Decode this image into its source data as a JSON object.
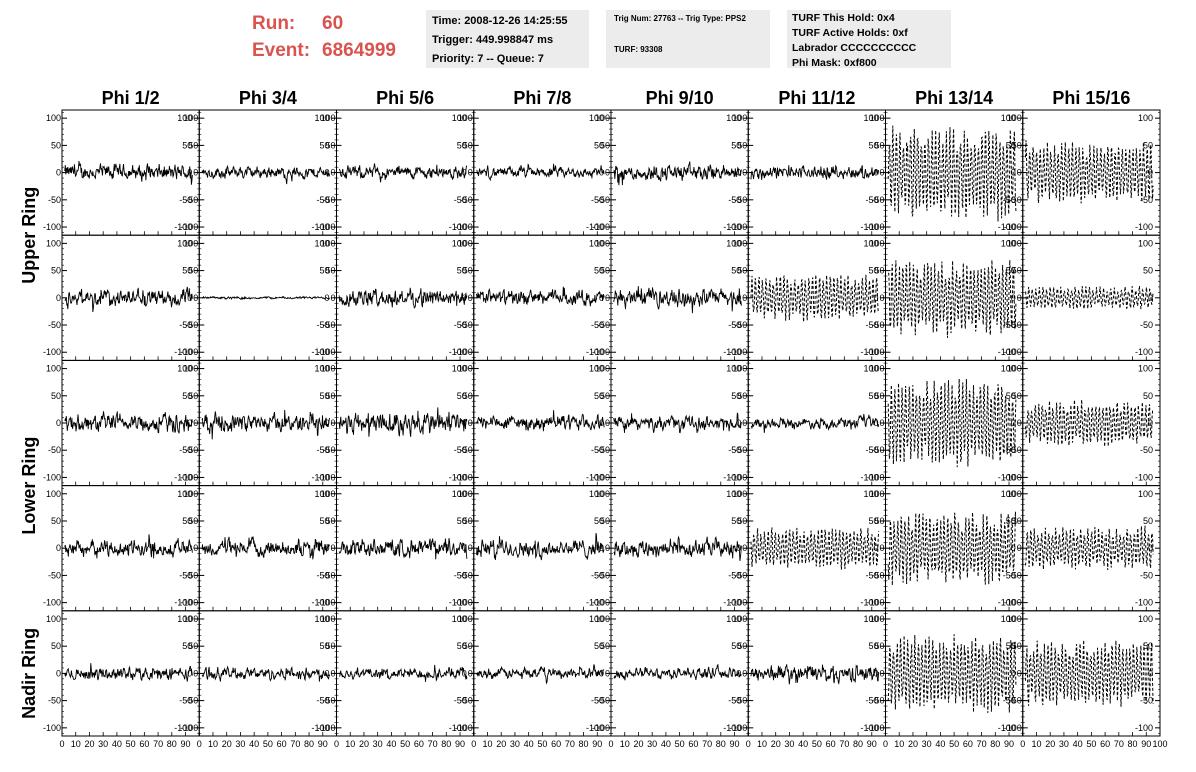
{
  "header": {
    "run_label": "Run:",
    "run_value": "60",
    "event_label": "Event:",
    "event_value": "6864999",
    "info1": [
      "Time: 2008-12-26 14:25:55",
      "Trigger: 449.998847 ms",
      "Priority: 7 -- Queue: 7"
    ],
    "info2": [
      "Trig Num: 27763 -- Trig Type: PPS2",
      "TURF: 93308"
    ],
    "info3": [
      "TURF This Hold: 0x4",
      "TURF Active Holds: 0xf",
      "Labrador CCCCCCCCCC",
      "Phi Mask: 0xf800"
    ]
  },
  "colors": {
    "header_text": "#d9534f",
    "info_bg": "#ececec",
    "trace": "#000000"
  },
  "chart_data": {
    "type": "line",
    "columns": [
      "Phi 1/2",
      "Phi 3/4",
      "Phi 5/6",
      "Phi 7/8",
      "Phi 9/10",
      "Phi 11/12",
      "Phi 13/14",
      "Phi 15/16"
    ],
    "rows": [
      "Upper Ring",
      "",
      "Lower Ring",
      "",
      "Nadir Ring"
    ],
    "row_labels": [
      "Upper Ring",
      "Lower Ring",
      "Nadir Ring"
    ],
    "ylim": [
      -115,
      115
    ],
    "y_ticks": [
      -100,
      -50,
      0,
      50,
      100
    ],
    "xlim": [
      0,
      100
    ],
    "x_tick_labels": [
      "0",
      "10",
      "20",
      "30",
      "40",
      "50",
      "60",
      "70",
      "80",
      "90",
      "100"
    ],
    "panel_amplitude": [
      [
        28,
        20,
        22,
        18,
        28,
        22,
        90,
        60
      ],
      [
        30,
        4,
        30,
        25,
        30,
        45,
        75,
        22
      ],
      [
        32,
        30,
        40,
        25,
        22,
        18,
        85,
        45
      ],
      [
        28,
        28,
        30,
        30,
        30,
        40,
        70,
        42
      ],
      [
        22,
        20,
        18,
        18,
        18,
        28,
        75,
        65
      ]
    ],
    "panel_dashed": [
      [
        false,
        false,
        false,
        false,
        false,
        false,
        true,
        true
      ],
      [
        false,
        false,
        false,
        false,
        false,
        true,
        true,
        true
      ],
      [
        false,
        false,
        false,
        false,
        false,
        false,
        true,
        true
      ],
      [
        false,
        false,
        false,
        false,
        false,
        true,
        true,
        true
      ],
      [
        false,
        false,
        false,
        false,
        false,
        false,
        true,
        true
      ]
    ]
  }
}
